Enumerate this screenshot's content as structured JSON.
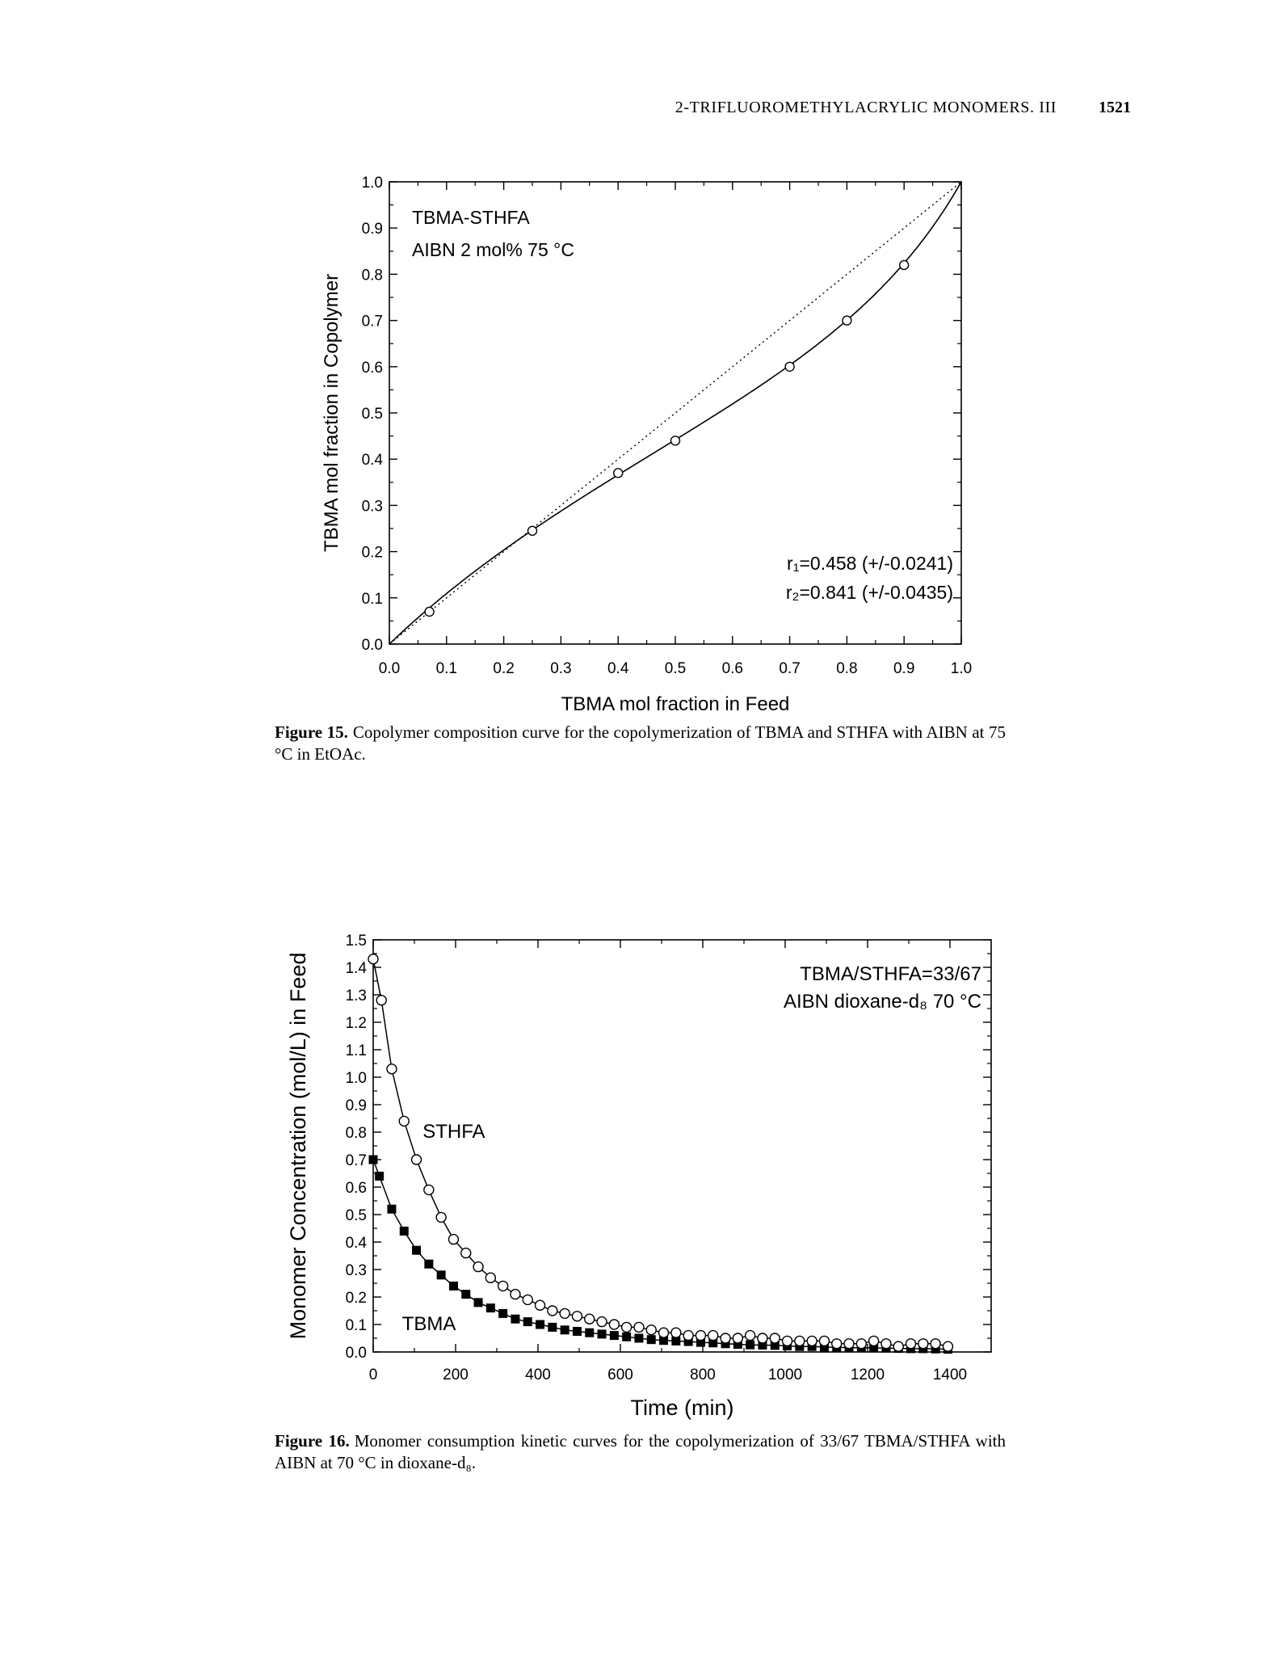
{
  "header": {
    "running_title": "2-TRIFLUOROMETHYLACRYLIC MONOMERS. III",
    "page_number": "1521"
  },
  "figures": [
    {
      "label": "Figure 15.",
      "caption": "Copolymer composition curve for the copolymerization of TBMA and STHFA with AIBN at 75 °C in EtOAc.",
      "annotation_lines": [
        "TBMA-STHFA",
        "AIBN 2 mol%  75 °C"
      ],
      "stats_lines": [
        "r₁=0.458 (+/-0.0241)",
        "r₂=0.841 (+/-0.0435)"
      ]
    },
    {
      "label": "Figure 16.",
      "caption": "Monomer consumption kinetic curves for the copolymerization of 33/67 TBMA/STHFA with AIBN at 70 °C in dioxane-d₈.",
      "annotation_lines": [
        "TBMA/STHFA=33/67",
        "AIBN  dioxane-d₈  70 °C"
      ]
    }
  ],
  "chart_data": [
    {
      "type": "scatter",
      "xlabel": "TBMA mol fraction in Feed",
      "ylabel": "TBMA mol fraction in Copolymer",
      "xlim": [
        0,
        1.0
      ],
      "ylim": [
        0,
        1.0
      ],
      "xticks": [
        0.0,
        0.1,
        0.2,
        0.3,
        0.4,
        0.5,
        0.6,
        0.7,
        0.8,
        0.9,
        1.0
      ],
      "yticks": [
        0.0,
        0.1,
        0.2,
        0.3,
        0.4,
        0.5,
        0.6,
        0.7,
        0.8,
        0.9,
        1.0
      ],
      "grid": false,
      "series": [
        {
          "marker": "open-circle",
          "x": [
            0.07,
            0.25,
            0.4,
            0.5,
            0.7,
            0.8,
            0.9
          ],
          "y": [
            0.07,
            0.245,
            0.37,
            0.44,
            0.6,
            0.7,
            0.82
          ]
        }
      ],
      "fit": {
        "style": "solid",
        "model": "Mayo-Lewis",
        "r1": 0.458,
        "r2": 0.841
      },
      "reference_line": {
        "style": "dotted",
        "x": [
          0,
          1
        ],
        "y": [
          0,
          1
        ]
      }
    },
    {
      "type": "scatter",
      "xlabel": "Time (min)",
      "ylabel": "Monomer Concentration (mol/L) in Feed",
      "xlim": [
        0,
        1500
      ],
      "ylim": [
        0,
        1.5
      ],
      "xticks": [
        0,
        200,
        400,
        600,
        800,
        1000,
        1200,
        1400
      ],
      "yticks": [
        0.0,
        0.1,
        0.2,
        0.3,
        0.4,
        0.5,
        0.6,
        0.7,
        0.8,
        0.9,
        1.0,
        1.1,
        1.2,
        1.3,
        1.4,
        1.5
      ],
      "grid": false,
      "series": [
        {
          "name": "STHFA",
          "marker": "open-circle",
          "x": [
            0,
            20,
            45,
            75,
            105,
            135,
            165,
            195,
            225,
            255,
            285,
            315,
            345,
            375,
            405,
            435,
            465,
            495,
            525,
            555,
            585,
            615,
            645,
            675,
            705,
            735,
            765,
            795,
            825,
            855,
            885,
            915,
            945,
            975,
            1005,
            1035,
            1065,
            1095,
            1125,
            1155,
            1185,
            1215,
            1245,
            1275,
            1305,
            1335,
            1365,
            1395
          ],
          "y": [
            1.43,
            1.28,
            1.03,
            0.84,
            0.7,
            0.59,
            0.49,
            0.41,
            0.36,
            0.31,
            0.27,
            0.24,
            0.21,
            0.19,
            0.17,
            0.15,
            0.14,
            0.13,
            0.12,
            0.11,
            0.1,
            0.09,
            0.09,
            0.08,
            0.07,
            0.07,
            0.06,
            0.06,
            0.06,
            0.05,
            0.05,
            0.06,
            0.05,
            0.05,
            0.04,
            0.04,
            0.04,
            0.04,
            0.03,
            0.03,
            0.03,
            0.04,
            0.03,
            0.02,
            0.03,
            0.03,
            0.03,
            0.02
          ]
        },
        {
          "name": "TBMA",
          "marker": "filled-square",
          "x": [
            0,
            15,
            45,
            75,
            105,
            135,
            165,
            195,
            225,
            255,
            285,
            315,
            345,
            375,
            405,
            435,
            465,
            495,
            525,
            555,
            585,
            615,
            645,
            675,
            705,
            735,
            765,
            795,
            825,
            855,
            885,
            915,
            945,
            975,
            1005,
            1035,
            1065,
            1095,
            1125,
            1155,
            1185,
            1215,
            1245,
            1275,
            1305,
            1335,
            1365,
            1395
          ],
          "y": [
            0.7,
            0.64,
            0.52,
            0.44,
            0.37,
            0.32,
            0.28,
            0.24,
            0.21,
            0.18,
            0.16,
            0.14,
            0.12,
            0.11,
            0.1,
            0.09,
            0.08,
            0.075,
            0.07,
            0.065,
            0.06,
            0.055,
            0.05,
            0.045,
            0.042,
            0.04,
            0.038,
            0.035,
            0.033,
            0.03,
            0.028,
            0.026,
            0.025,
            0.024,
            0.022,
            0.02,
            0.02,
            0.018,
            0.017,
            0.016,
            0.015,
            0.015,
            0.014,
            0.013,
            0.012,
            0.012,
            0.011,
            0.01
          ]
        }
      ]
    }
  ]
}
